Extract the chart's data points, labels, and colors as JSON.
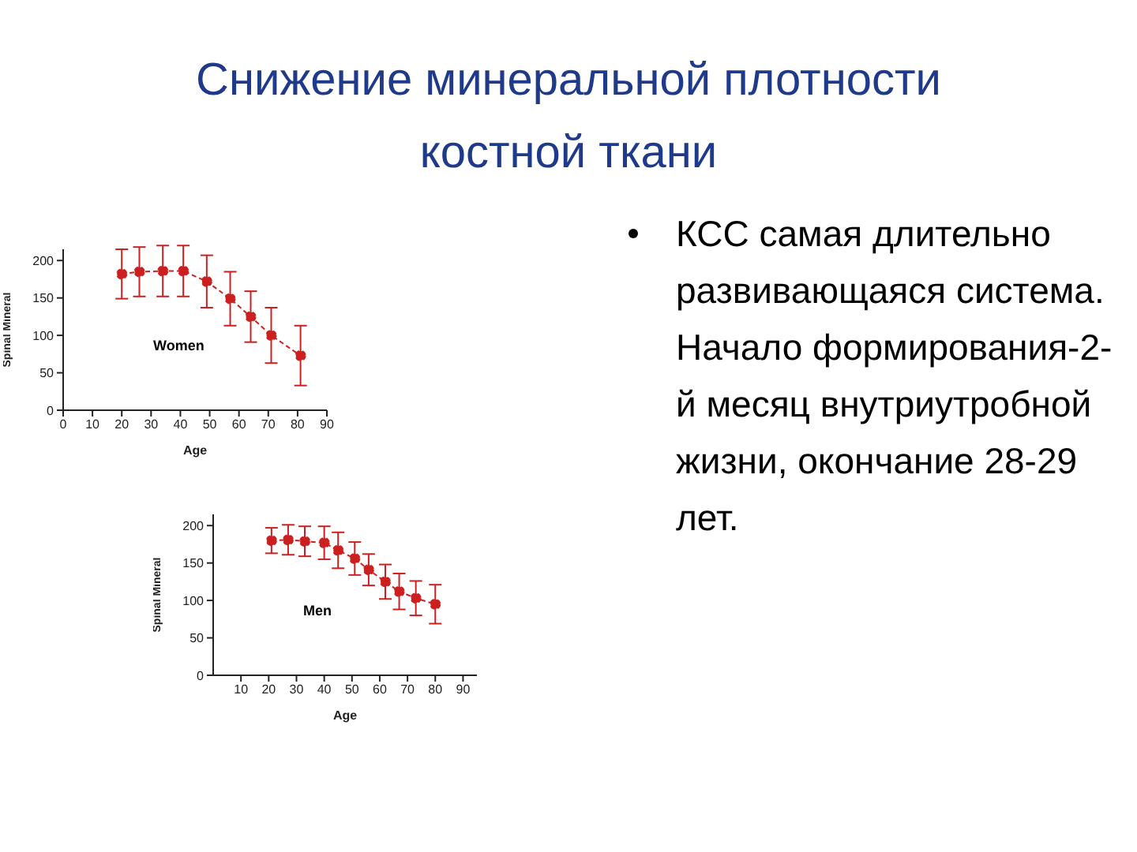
{
  "chart_data": [
    {
      "type": "other",
      "title": "Снижение минеральной плотности костной ткани",
      "annotations": [
        "КСС самая длительно развивающаяся система. Начало формирования-2-й месяц внутриутробной жизни, окончание 28-29 лет."
      ]
    },
    {
      "type": "line",
      "xlabel": "Age",
      "ylabel": "Spinal Mineral",
      "annotations": [
        "Women"
      ],
      "xlim": [
        0,
        90
      ],
      "xticks": [
        0,
        10,
        20,
        30,
        40,
        50,
        60,
        70,
        80,
        90
      ],
      "ylim": [
        0,
        215
      ],
      "yticks": [
        0,
        50,
        100,
        150,
        200
      ],
      "marker": "circle",
      "line_style": "dashed",
      "series": [
        {
          "color": "#cc2020",
          "x": [
            20,
            26,
            34,
            41,
            49,
            57,
            64,
            71,
            81
          ],
          "values": [
            182,
            185,
            186,
            186,
            172,
            149,
            125,
            100,
            73
          ],
          "errors": [
            33,
            33,
            34,
            34,
            35,
            36,
            34,
            37,
            40
          ]
        }
      ]
    },
    {
      "type": "line",
      "xlabel": "Age",
      "ylabel": "Spinal Mineral",
      "annotations": [
        "Men"
      ],
      "xlim": [
        0,
        95
      ],
      "xticks": [
        10,
        20,
        30,
        40,
        50,
        60,
        70,
        80,
        90
      ],
      "ylim": [
        0,
        215
      ],
      "yticks": [
        0,
        50,
        100,
        150,
        200
      ],
      "marker": "circle",
      "line_style": "dashed",
      "series": [
        {
          "color": "#cc2020",
          "x": [
            21,
            27,
            33,
            40,
            45,
            51,
            56,
            62,
            67,
            73,
            80
          ],
          "values": [
            180,
            181,
            179,
            177,
            167,
            156,
            141,
            125,
            112,
            103,
            95
          ],
          "errors": [
            17,
            20,
            20,
            22,
            24,
            22,
            21,
            23,
            24,
            23,
            26
          ]
        }
      ]
    }
  ]
}
